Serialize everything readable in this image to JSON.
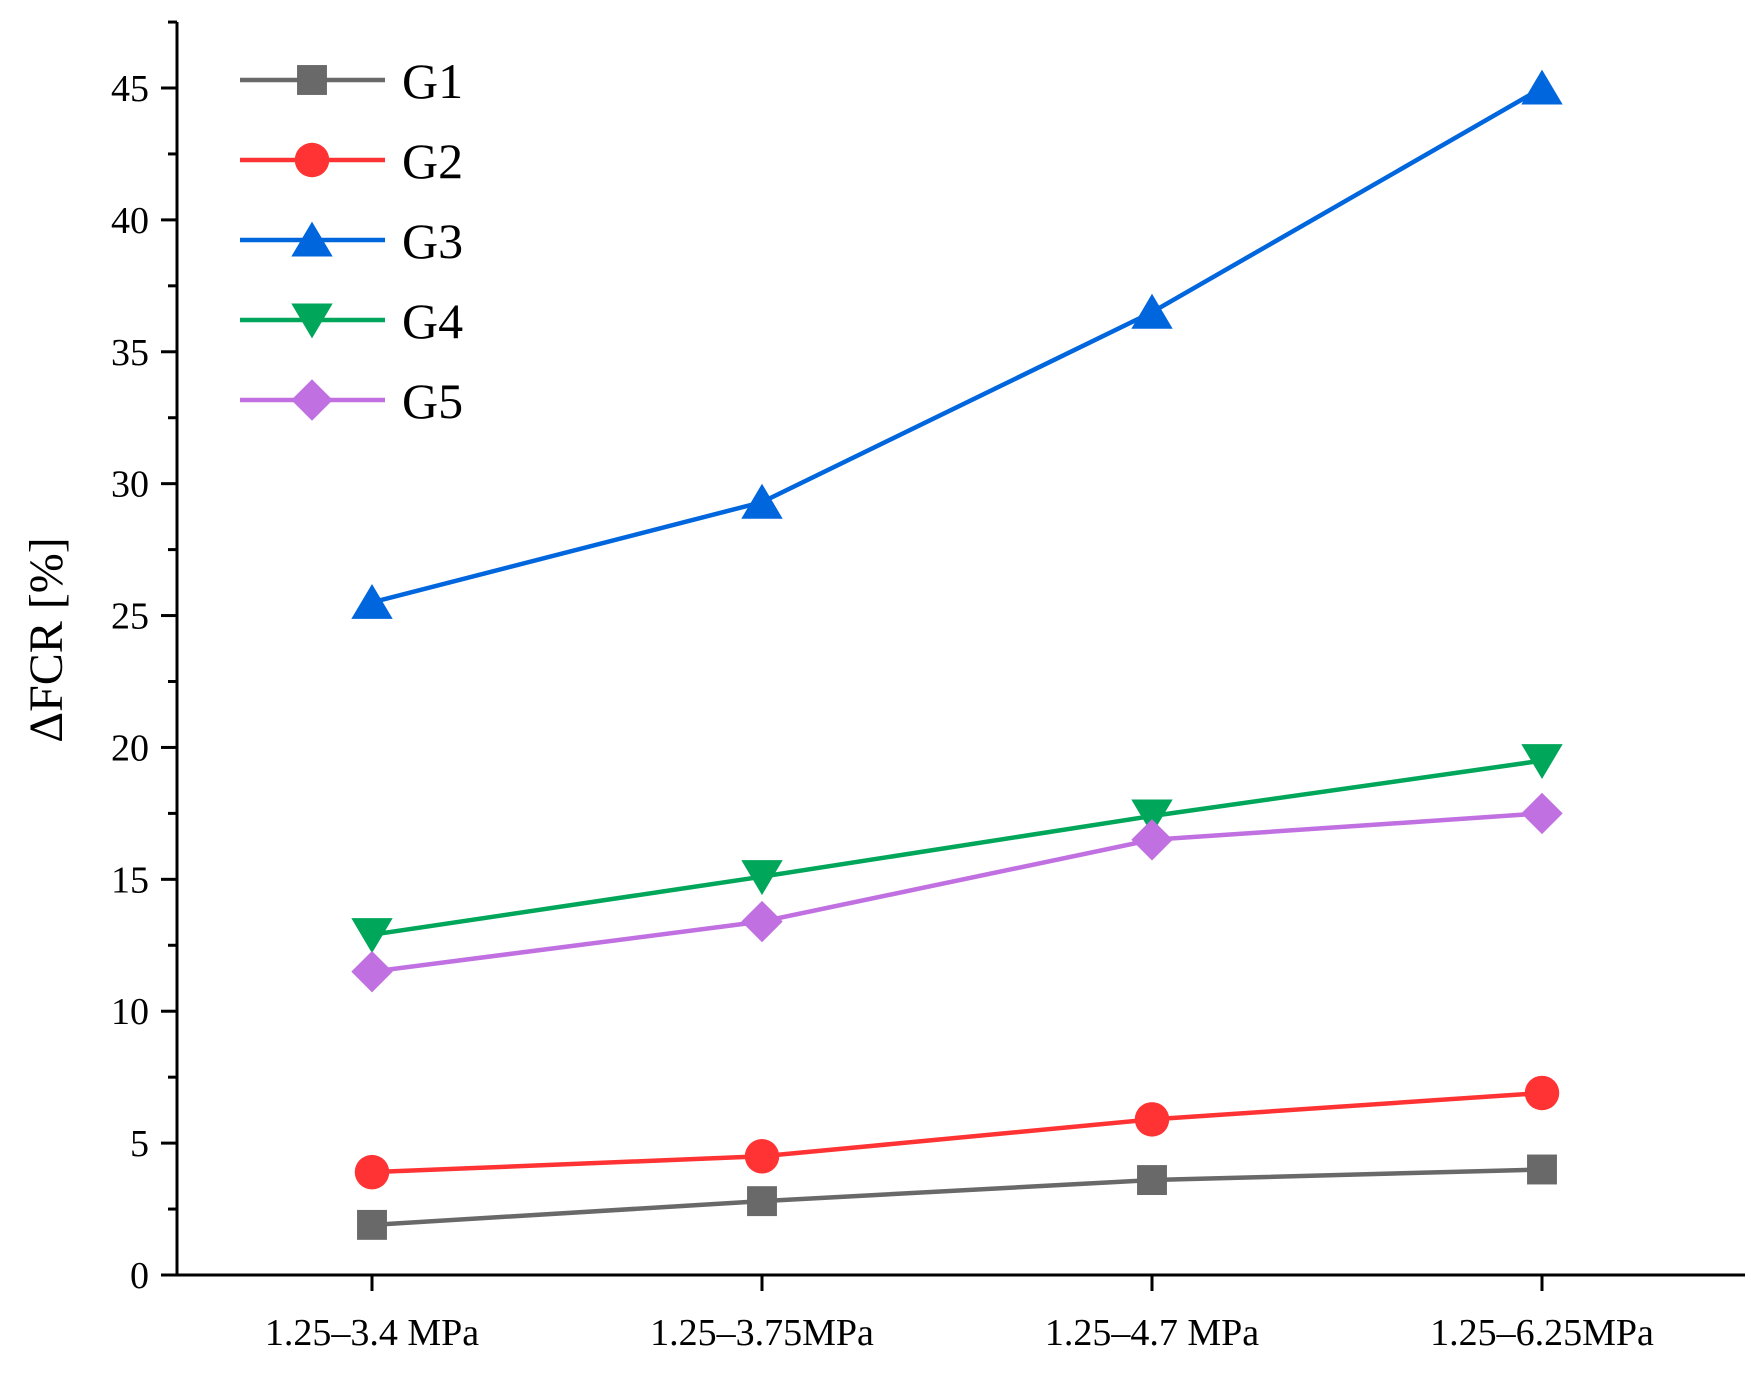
{
  "chart_data": {
    "type": "line",
    "title": "",
    "xlabel": "",
    "ylabel": "ΔFCR [%]",
    "categories": [
      "1.25–3.4 MPa",
      "1.25–3.75MPa",
      "1.25–4.7 MPa",
      "1.25–6.25MPa"
    ],
    "ylim": [
      0,
      47.5
    ],
    "yticks": [
      0,
      5,
      10,
      15,
      20,
      25,
      30,
      35,
      40,
      45
    ],
    "grid": false,
    "legend_position": "top-left",
    "series": [
      {
        "name": "G1",
        "color": "#696969",
        "marker": "square",
        "values": [
          1.9,
          2.8,
          3.6,
          4.0
        ]
      },
      {
        "name": "G2",
        "color": "#ff3333",
        "marker": "circle",
        "values": [
          3.9,
          4.5,
          5.9,
          6.9
        ]
      },
      {
        "name": "G3",
        "color": "#0066dd",
        "marker": "triangle-up",
        "values": [
          25.5,
          29.3,
          36.5,
          45.0
        ]
      },
      {
        "name": "G4",
        "color": "#00a65a",
        "marker": "triangle-down",
        "values": [
          12.9,
          15.1,
          17.4,
          19.5
        ]
      },
      {
        "name": "G5",
        "color": "#c070e0",
        "marker": "diamond",
        "values": [
          11.5,
          13.4,
          16.5,
          17.5
        ]
      }
    ]
  }
}
